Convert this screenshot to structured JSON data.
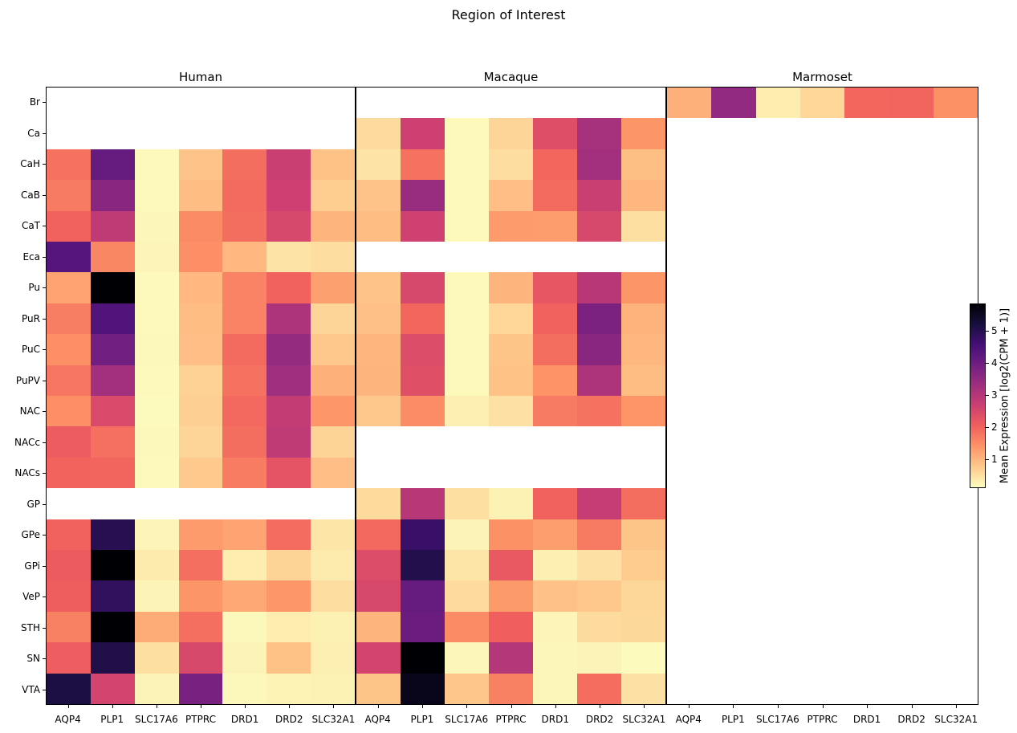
{
  "chart_data": {
    "type": "heatmap",
    "title": "Region of Interest",
    "colorbar_label": "Mean Expression [log2(CPM + 1)]",
    "colorbar_ticks": [
      1,
      2,
      3,
      4,
      5
    ],
    "vmin": 0.1,
    "vmax": 5.85,
    "colormap": "magma_r",
    "colormap_anchors_low_to_high": [
      "#fcfdbf",
      "#feca8d",
      "#fd9567",
      "#f1605d",
      "#cd4071",
      "#9f2f7f",
      "#721f81",
      "#451077",
      "#180f3e",
      "#000004"
    ],
    "genes": [
      "AQP4",
      "PLP1",
      "SLC17A6",
      "PTPRC",
      "DRD1",
      "DRD2",
      "SLC32A1"
    ],
    "rows": [
      "Br",
      "Ca",
      "CaH",
      "CaB",
      "CaT",
      "Eca",
      "Pu",
      "PuR",
      "PuC",
      "PuPV",
      "NAC",
      "NACc",
      "NACs",
      "GP",
      "GPe",
      "GPi",
      "VeP",
      "STH",
      "SN",
      "VTA"
    ],
    "panels": [
      {
        "species": "Human",
        "values": [
          null,
          null,
          [
            1.8,
            4.1,
            0.15,
            0.82,
            1.85,
            2.7,
            0.85
          ],
          [
            1.7,
            3.6,
            0.15,
            0.9,
            1.9,
            2.65,
            0.7
          ],
          [
            2.0,
            2.85,
            0.18,
            1.5,
            1.85,
            2.5,
            1.0
          ],
          [
            4.35,
            1.55,
            0.2,
            1.45,
            0.95,
            0.42,
            0.5
          ],
          [
            1.2,
            5.85,
            0.15,
            0.95,
            1.6,
            2.0,
            1.25
          ],
          [
            1.65,
            4.4,
            0.15,
            0.9,
            1.6,
            3.1,
            0.6
          ],
          [
            1.45,
            3.95,
            0.17,
            0.88,
            1.9,
            3.45,
            0.78
          ],
          [
            1.75,
            3.25,
            0.15,
            0.65,
            1.8,
            3.3,
            1.05
          ],
          [
            1.45,
            2.45,
            0.12,
            0.67,
            1.92,
            2.8,
            1.35
          ],
          [
            2.1,
            1.82,
            0.17,
            0.6,
            1.85,
            2.85,
            0.62
          ],
          [
            1.98,
            1.97,
            0.15,
            0.75,
            1.68,
            2.25,
            0.88
          ],
          null,
          [
            2.0,
            5.0,
            0.2,
            1.3,
            1.2,
            1.87,
            0.4
          ],
          [
            2.12,
            5.85,
            0.32,
            1.83,
            0.3,
            0.63,
            0.33
          ],
          [
            2.05,
            4.85,
            0.22,
            1.37,
            1.15,
            1.36,
            0.5
          ],
          [
            1.63,
            5.85,
            1.1,
            1.83,
            0.17,
            0.3,
            0.25
          ],
          [
            2.07,
            5.1,
            0.48,
            2.47,
            0.21,
            0.85,
            0.27
          ],
          [
            5.15,
            2.55,
            0.22,
            3.85,
            0.17,
            0.23,
            0.24
          ]
        ]
      },
      {
        "species": "Macaque",
        "values": [
          null,
          [
            0.52,
            2.65,
            0.15,
            0.6,
            2.35,
            3.2,
            1.37
          ],
          [
            0.43,
            1.8,
            0.15,
            0.5,
            1.95,
            3.25,
            0.87
          ],
          [
            0.82,
            3.4,
            0.15,
            0.88,
            1.9,
            2.7,
            0.97
          ],
          [
            0.9,
            2.63,
            0.15,
            1.3,
            1.28,
            2.5,
            0.48
          ],
          null,
          [
            0.82,
            2.5,
            0.15,
            1.0,
            2.2,
            2.95,
            1.37
          ],
          [
            0.86,
            1.95,
            0.15,
            0.58,
            2.0,
            3.8,
            1.02
          ],
          [
            0.98,
            2.4,
            0.15,
            0.8,
            1.85,
            3.6,
            0.97
          ],
          [
            1.0,
            2.33,
            0.15,
            0.84,
            1.4,
            3.1,
            0.9
          ],
          [
            0.77,
            1.47,
            0.28,
            0.45,
            1.7,
            1.8,
            1.38
          ],
          null,
          null,
          [
            0.53,
            2.95,
            0.48,
            0.24,
            2.0,
            2.77,
            1.85
          ],
          [
            1.92,
            4.75,
            0.22,
            1.43,
            1.27,
            1.7,
            0.8
          ],
          [
            2.4,
            5.05,
            0.4,
            2.15,
            0.27,
            0.45,
            0.72
          ],
          [
            2.5,
            4.1,
            0.52,
            1.32,
            0.83,
            0.78,
            0.57
          ],
          [
            1.0,
            4.05,
            1.5,
            2.03,
            0.2,
            0.52,
            0.56
          ],
          [
            2.55,
            5.85,
            0.19,
            3.0,
            0.19,
            0.22,
            0.12
          ],
          [
            0.8,
            5.6,
            0.79,
            1.62,
            0.19,
            1.86,
            0.46
          ]
        ]
      },
      {
        "species": "Marmoset",
        "values": [
          [
            1.05,
            3.5,
            0.3,
            0.58,
            1.95,
            1.96,
            1.42
          ],
          null,
          null,
          null,
          null,
          null,
          null,
          null,
          null,
          null,
          null,
          null,
          null,
          null,
          null,
          null,
          null,
          null,
          null,
          null
        ]
      }
    ]
  }
}
